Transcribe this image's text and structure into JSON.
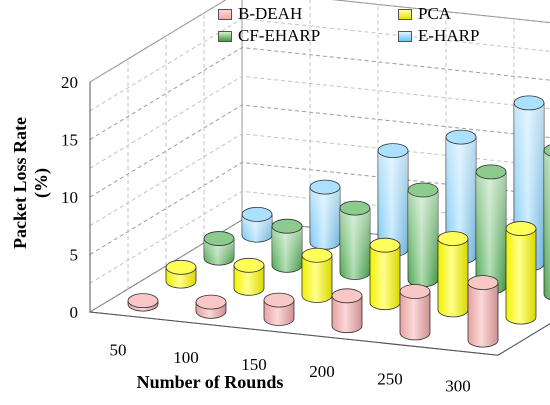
{
  "chart_data": {
    "type": "bar",
    "style": "3d-cylinder",
    "categories": [
      "50",
      "100",
      "150",
      "200",
      "250",
      "300"
    ],
    "series": [
      {
        "name": "B-DEAH",
        "color": "#f4a9a8",
        "values": [
          0.3,
          0.8,
          1.6,
          2.6,
          3.6,
          5.0
        ]
      },
      {
        "name": "PCA",
        "color": "#ffff00",
        "values": [
          1.2,
          2.0,
          3.5,
          5.0,
          6.2,
          7.7
        ]
      },
      {
        "name": "CF-EHARP",
        "color": "#4caf50",
        "values": [
          1.7,
          3.4,
          5.6,
          7.8,
          10.0,
          12.5
        ]
      },
      {
        "name": "E-HARP",
        "color": "#7fd0ff",
        "values": [
          1.8,
          4.8,
          8.6,
          10.4,
          14.0,
          17.4
        ]
      }
    ],
    "xlabel": "Number of Rounds",
    "ylabel": "Packet Loss Rate (%)",
    "ylim": [
      0,
      20
    ],
    "yticks": [
      0,
      5,
      10,
      15,
      20
    ],
    "grid": true,
    "legend_position": "top"
  }
}
